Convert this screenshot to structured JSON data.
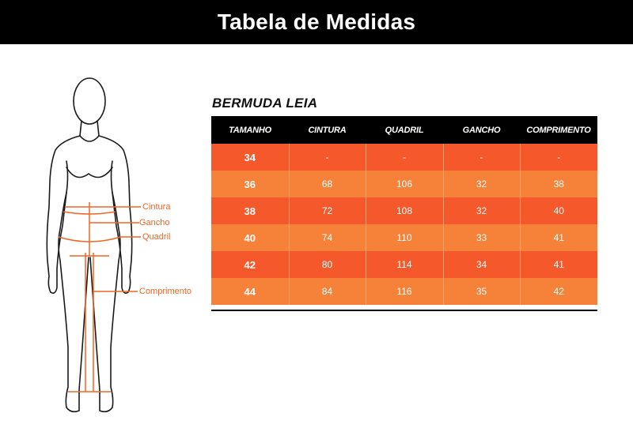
{
  "header": {
    "title": "Tabela de Medidas"
  },
  "figure": {
    "labels": {
      "waist": "Cintura",
      "rise": "Gancho",
      "hip": "Quadril",
      "length": "Comprimento"
    }
  },
  "product": {
    "title": "BERMUDA LEIA"
  },
  "table": {
    "headers": [
      "TAMANHO",
      "CINTURA",
      "QUADRIL",
      "GANCHO",
      "COMPRIMENTO"
    ],
    "rows": [
      [
        "34",
        "-",
        "-",
        "-",
        "-"
      ],
      [
        "36",
        "68",
        "106",
        "32",
        "38"
      ],
      [
        "38",
        "72",
        "108",
        "32",
        "40"
      ],
      [
        "40",
        "74",
        "110",
        "33",
        "41"
      ],
      [
        "42",
        "80",
        "114",
        "34",
        "41"
      ],
      [
        "44",
        "84",
        "116",
        "35",
        "42"
      ]
    ]
  },
  "colors": {
    "accent": "#f26522",
    "row_dark": "#f4582b",
    "row_light": "#f6823a",
    "header_bg": "#000000"
  }
}
